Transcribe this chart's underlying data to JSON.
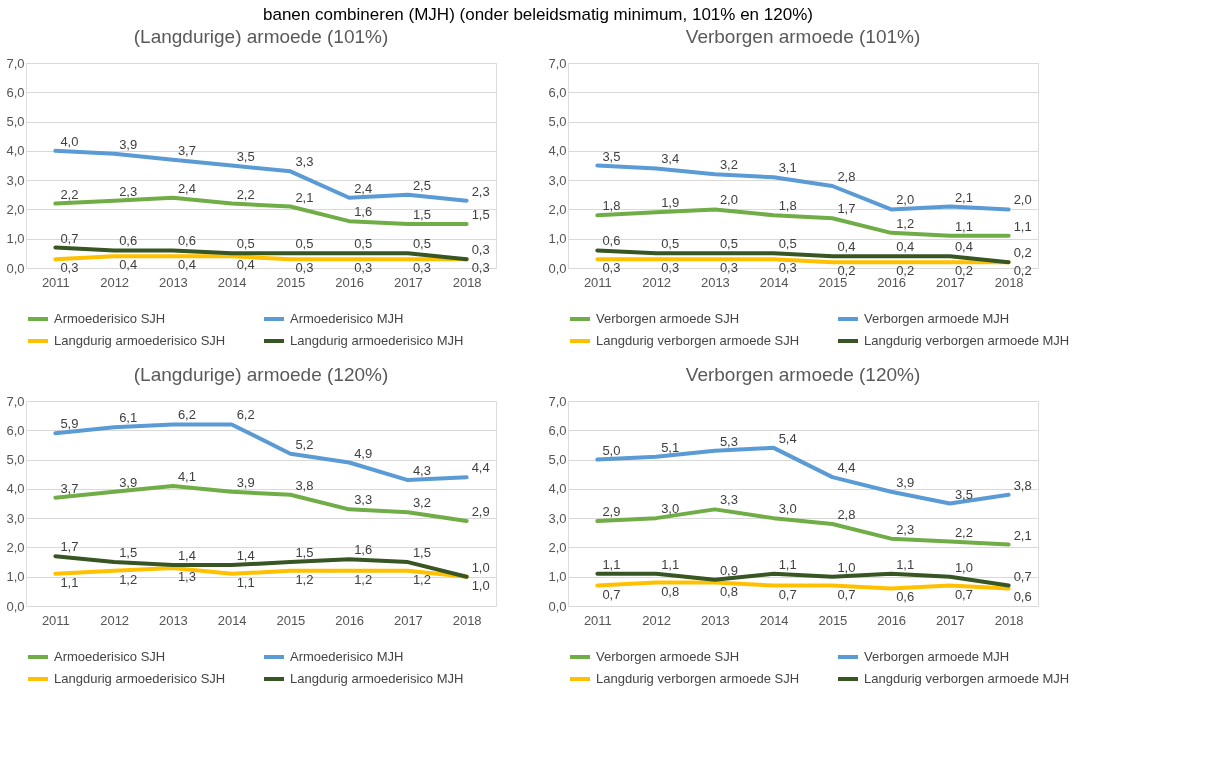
{
  "chart_data": [
    {
      "type": "line",
      "title": "(Langdurige) armoede (101%)",
      "annotations": [
        "banen combineren (MJH) (onder beleidsmatig minimum, 101% en 120%)"
      ],
      "categories": [
        "2011",
        "2012",
        "2013",
        "2014",
        "2015",
        "2016",
        "2017",
        "2018"
      ],
      "ylim": [
        0,
        7
      ],
      "yticks": [
        {
          "value": 0,
          "label": "0,0"
        },
        {
          "value": 1,
          "label": "1,0"
        },
        {
          "value": 2,
          "label": "2,0"
        },
        {
          "value": 3,
          "label": "3,0"
        },
        {
          "value": 4,
          "label": "4,0"
        },
        {
          "value": 5,
          "label": "5,0"
        },
        {
          "value": 6,
          "label": "6,0"
        },
        {
          "value": 7,
          "label": "7,0"
        }
      ],
      "grid": "y",
      "legend": "bottom",
      "series": [
        {
          "name": "Armoederisico SJH",
          "color": "#70ad47",
          "values": [
            2.2,
            2.3,
            2.4,
            2.2,
            2.1,
            1.6,
            1.5,
            1.5
          ],
          "value_labels": [
            "2,2",
            "2,3",
            "2,4",
            "2,2",
            "2,1",
            "1,6",
            "1,5",
            "1,5"
          ]
        },
        {
          "name": "Armoederisico MJH",
          "color": "#5b9bd5",
          "values": [
            4.0,
            3.9,
            3.7,
            3.5,
            3.3,
            2.4,
            2.5,
            2.3
          ],
          "value_labels": [
            "4,0",
            "3,9",
            "3,7",
            "3,5",
            "3,3",
            "2,4",
            "2,5",
            "2,3"
          ]
        },
        {
          "name": "Langdurig armoederisico SJH",
          "color": "#ffc000",
          "values": [
            0.3,
            0.4,
            0.4,
            0.4,
            0.3,
            0.3,
            0.3,
            0.3
          ],
          "value_labels": [
            "0,3",
            "0,4",
            "0,4",
            "0,4",
            "0,3",
            "0,3",
            "0,3",
            "0,3"
          ]
        },
        {
          "name": "Langdurig armoederisico MJH",
          "color": "#375623",
          "values": [
            0.7,
            0.6,
            0.6,
            0.5,
            0.5,
            0.5,
            0.5,
            0.3
          ],
          "value_labels": [
            "0,7",
            "0,6",
            "0,6",
            "0,5",
            "0,5",
            "0,5",
            "0,5",
            "0,3"
          ]
        }
      ]
    },
    {
      "type": "line",
      "title": "Verborgen armoede (101%)",
      "categories": [
        "2011",
        "2012",
        "2013",
        "2014",
        "2015",
        "2016",
        "2017",
        "2018"
      ],
      "ylim": [
        0,
        7
      ],
      "yticks": [
        {
          "value": 0,
          "label": "0,0"
        },
        {
          "value": 1,
          "label": "1,0"
        },
        {
          "value": 2,
          "label": "2,0"
        },
        {
          "value": 3,
          "label": "3,0"
        },
        {
          "value": 4,
          "label": "4,0"
        },
        {
          "value": 5,
          "label": "5,0"
        },
        {
          "value": 6,
          "label": "6,0"
        },
        {
          "value": 7,
          "label": "7,0"
        }
      ],
      "grid": "y",
      "legend": "bottom",
      "series": [
        {
          "name": "Verborgen armoede SJH",
          "color": "#70ad47",
          "values": [
            1.8,
            1.9,
            2.0,
            1.8,
            1.7,
            1.2,
            1.1,
            1.1
          ],
          "value_labels": [
            "1,8",
            "1,9",
            "2,0",
            "1,8",
            "1,7",
            "1,2",
            "1,1",
            "1,1"
          ]
        },
        {
          "name": "Verborgen armoede MJH",
          "color": "#5b9bd5",
          "values": [
            3.5,
            3.4,
            3.2,
            3.1,
            2.8,
            2.0,
            2.1,
            2.0
          ],
          "value_labels": [
            "3,5",
            "3,4",
            "3,2",
            "3,1",
            "2,8",
            "2,0",
            "2,1",
            "2,0"
          ]
        },
        {
          "name": "Langdurig verborgen armoede SJH",
          "color": "#ffc000",
          "values": [
            0.3,
            0.3,
            0.3,
            0.3,
            0.2,
            0.2,
            0.2,
            0.2
          ],
          "value_labels": [
            "0,3",
            "0,3",
            "0,3",
            "0,3",
            "0,2",
            "0,2",
            "0,2",
            "0,2"
          ]
        },
        {
          "name": "Langdurig verborgen armoede MJH",
          "color": "#375623",
          "values": [
            0.6,
            0.5,
            0.5,
            0.5,
            0.4,
            0.4,
            0.4,
            0.2
          ],
          "value_labels": [
            "0,6",
            "0,5",
            "0,5",
            "0,5",
            "0,4",
            "0,4",
            "0,4",
            "0,2"
          ]
        }
      ]
    },
    {
      "type": "line",
      "title": "(Langdurige) armoede (120%)",
      "categories": [
        "2011",
        "2012",
        "2013",
        "2014",
        "2015",
        "2016",
        "2017",
        "2018"
      ],
      "ylim": [
        0,
        7
      ],
      "yticks": [
        {
          "value": 0,
          "label": "0,0"
        },
        {
          "value": 1,
          "label": "1,0"
        },
        {
          "value": 2,
          "label": "2,0"
        },
        {
          "value": 3,
          "label": "3,0"
        },
        {
          "value": 4,
          "label": "4,0"
        },
        {
          "value": 5,
          "label": "5,0"
        },
        {
          "value": 6,
          "label": "6,0"
        },
        {
          "value": 7,
          "label": "7,0"
        }
      ],
      "grid": "y",
      "legend": "bottom",
      "series": [
        {
          "name": "Armoederisico SJH",
          "color": "#70ad47",
          "values": [
            3.7,
            3.9,
            4.1,
            3.9,
            3.8,
            3.3,
            3.2,
            2.9
          ],
          "value_labels": [
            "3,7",
            "3,9",
            "4,1",
            "3,9",
            "3,8",
            "3,3",
            "3,2",
            "2,9"
          ]
        },
        {
          "name": "Armoederisico MJH",
          "color": "#5b9bd5",
          "values": [
            5.9,
            6.1,
            6.2,
            6.2,
            5.2,
            4.9,
            4.3,
            4.4
          ],
          "value_labels": [
            "5,9",
            "6,1",
            "6,2",
            "6,2",
            "5,2",
            "4,9",
            "4,3",
            "4,4"
          ]
        },
        {
          "name": "Langdurig armoederisico SJH",
          "color": "#ffc000",
          "values": [
            1.1,
            1.2,
            1.3,
            1.1,
            1.2,
            1.2,
            1.2,
            1.0
          ],
          "value_labels": [
            "1,1",
            "1,2",
            "1,3",
            "1,1",
            "1,2",
            "1,2",
            "1,2",
            "1,0"
          ]
        },
        {
          "name": "Langdurig armoederisico MJH",
          "color": "#375623",
          "values": [
            1.7,
            1.5,
            1.4,
            1.4,
            1.5,
            1.6,
            1.5,
            1.0
          ],
          "value_labels": [
            "1,7",
            "1,5",
            "1,4",
            "1,4",
            "1,5",
            "1,6",
            "1,5",
            "1,0"
          ]
        }
      ]
    },
    {
      "type": "line",
      "title": "Verborgen armoede (120%)",
      "categories": [
        "2011",
        "2012",
        "2013",
        "2014",
        "2015",
        "2016",
        "2017",
        "2018"
      ],
      "ylim": [
        0,
        7
      ],
      "yticks": [
        {
          "value": 0,
          "label": "0,0"
        },
        {
          "value": 1,
          "label": "1,0"
        },
        {
          "value": 2,
          "label": "2,0"
        },
        {
          "value": 3,
          "label": "3,0"
        },
        {
          "value": 4,
          "label": "4,0"
        },
        {
          "value": 5,
          "label": "5,0"
        },
        {
          "value": 6,
          "label": "6,0"
        },
        {
          "value": 7,
          "label": "7,0"
        }
      ],
      "grid": "y",
      "legend": "bottom",
      "series": [
        {
          "name": "Verborgen armoede SJH",
          "color": "#70ad47",
          "values": [
            2.9,
            3.0,
            3.3,
            3.0,
            2.8,
            2.3,
            2.2,
            2.1
          ],
          "value_labels": [
            "2,9",
            "3,0",
            "3,3",
            "3,0",
            "2,8",
            "2,3",
            "2,2",
            "2,1"
          ]
        },
        {
          "name": "Verborgen armoede MJH",
          "color": "#5b9bd5",
          "values": [
            5.0,
            5.1,
            5.3,
            5.4,
            4.4,
            3.9,
            3.5,
            3.8
          ],
          "value_labels": [
            "5,0",
            "5,1",
            "5,3",
            "5,4",
            "4,4",
            "3,9",
            "3,5",
            "3,8"
          ]
        },
        {
          "name": "Langdurig verborgen armoede SJH",
          "color": "#ffc000",
          "values": [
            0.7,
            0.8,
            0.8,
            0.7,
            0.7,
            0.6,
            0.7,
            0.6
          ],
          "value_labels": [
            "0,7",
            "0,8",
            "0,8",
            "0,7",
            "0,7",
            "0,6",
            "0,7",
            "0,6"
          ]
        },
        {
          "name": "Langdurig verborgen armoede MJH",
          "color": "#375623",
          "values": [
            1.1,
            1.1,
            0.9,
            1.1,
            1.0,
            1.1,
            1.0,
            0.7
          ],
          "value_labels": [
            "1,1",
            "1,1",
            "0,9",
            "1,1",
            "1,0",
            "1,1",
            "1,0",
            "0,7"
          ]
        }
      ]
    }
  ]
}
